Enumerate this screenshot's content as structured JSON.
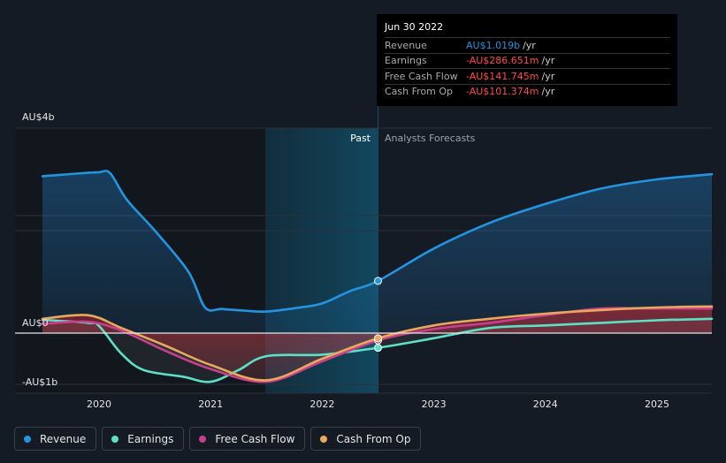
{
  "chart_data": {
    "type": "line",
    "x_axis": {
      "ticks": [
        "2020",
        "2021",
        "2022",
        "2023",
        "2024",
        "2025"
      ],
      "range": [
        2019.5,
        2025.5
      ]
    },
    "y_axis": {
      "tick_labels": [
        "AU$4b",
        "AU$0",
        "-AU$1b"
      ],
      "range": [
        -1,
        4
      ]
    },
    "regions": {
      "past_label": "Past",
      "forecast_label": "Analysts Forecasts",
      "divider_x": 2022.5
    },
    "series": [
      {
        "name": "Revenue",
        "color": "#2394df",
        "points": [
          [
            2019.3,
            3.06
          ],
          [
            2019.6,
            3.08
          ],
          [
            2019.85,
            3.12
          ],
          [
            2020.0,
            3.14
          ],
          [
            2020.1,
            3.12
          ],
          [
            2020.25,
            2.6
          ],
          [
            2020.5,
            2.0
          ],
          [
            2020.8,
            1.2
          ],
          [
            2020.95,
            0.5
          ],
          [
            2021.1,
            0.47
          ],
          [
            2021.3,
            0.44
          ],
          [
            2021.5,
            0.42
          ],
          [
            2021.8,
            0.5
          ],
          [
            2022.0,
            0.58
          ],
          [
            2022.25,
            0.82
          ],
          [
            2022.5,
            1.019
          ],
          [
            2023.0,
            1.65
          ],
          [
            2023.5,
            2.15
          ],
          [
            2024.0,
            2.52
          ],
          [
            2024.5,
            2.82
          ],
          [
            2025.0,
            3.0
          ],
          [
            2025.5,
            3.1
          ]
        ]
      },
      {
        "name": "Earnings",
        "color": "#5ce0c6",
        "points": [
          [
            2019.3,
            0.26
          ],
          [
            2019.9,
            0.2
          ],
          [
            2020.0,
            0.14
          ],
          [
            2020.2,
            -0.4
          ],
          [
            2020.4,
            -0.72
          ],
          [
            2020.75,
            -0.85
          ],
          [
            2021.0,
            -0.95
          ],
          [
            2021.25,
            -0.72
          ],
          [
            2021.5,
            -0.45
          ],
          [
            2022.0,
            -0.42
          ],
          [
            2022.5,
            -0.287
          ],
          [
            2023.0,
            -0.1
          ],
          [
            2023.5,
            0.1
          ],
          [
            2024.0,
            0.15
          ],
          [
            2024.5,
            0.2
          ],
          [
            2025.0,
            0.25
          ],
          [
            2025.5,
            0.28
          ]
        ]
      },
      {
        "name": "Free Cash Flow",
        "color": "#c8408d",
        "points": [
          [
            2019.3,
            0.18
          ],
          [
            2019.9,
            0.22
          ],
          [
            2020.2,
            0.05
          ],
          [
            2020.6,
            -0.35
          ],
          [
            2021.0,
            -0.7
          ],
          [
            2021.5,
            -0.95
          ],
          [
            2022.0,
            -0.55
          ],
          [
            2022.5,
            -0.142
          ],
          [
            2023.0,
            0.08
          ],
          [
            2023.5,
            0.2
          ],
          [
            2024.0,
            0.35
          ],
          [
            2024.5,
            0.48
          ],
          [
            2025.0,
            0.48
          ],
          [
            2025.5,
            0.48
          ]
        ]
      },
      {
        "name": "Cash From Op",
        "color": "#e9a95a",
        "points": [
          [
            2019.3,
            0.28
          ],
          [
            2019.9,
            0.35
          ],
          [
            2020.2,
            0.1
          ],
          [
            2020.6,
            -0.25
          ],
          [
            2021.0,
            -0.62
          ],
          [
            2021.5,
            -0.92
          ],
          [
            2022.0,
            -0.5
          ],
          [
            2022.5,
            -0.101
          ],
          [
            2023.0,
            0.15
          ],
          [
            2023.5,
            0.28
          ],
          [
            2024.0,
            0.38
          ],
          [
            2024.5,
            0.45
          ],
          [
            2025.0,
            0.5
          ],
          [
            2025.5,
            0.52
          ]
        ]
      }
    ]
  },
  "tooltip": {
    "date": "Jun 30 2022",
    "rows": [
      {
        "label": "Revenue",
        "value": "AU$1.019b",
        "unit": "/yr",
        "color": "#2394df"
      },
      {
        "label": "Earnings",
        "value": "-AU$286.651m",
        "unit": "/yr",
        "color": "#ff4a4a"
      },
      {
        "label": "Free Cash Flow",
        "value": "-AU$141.745m",
        "unit": "/yr",
        "color": "#ff4a4a"
      },
      {
        "label": "Cash From Op",
        "value": "-AU$101.374m",
        "unit": "/yr",
        "color": "#ff4a4a"
      }
    ]
  },
  "legend": [
    {
      "label": "Revenue",
      "color": "#2394df"
    },
    {
      "label": "Earnings",
      "color": "#5ce0c6"
    },
    {
      "label": "Free Cash Flow",
      "color": "#c8408d"
    },
    {
      "label": "Cash From Op",
      "color": "#e9a95a"
    }
  ]
}
